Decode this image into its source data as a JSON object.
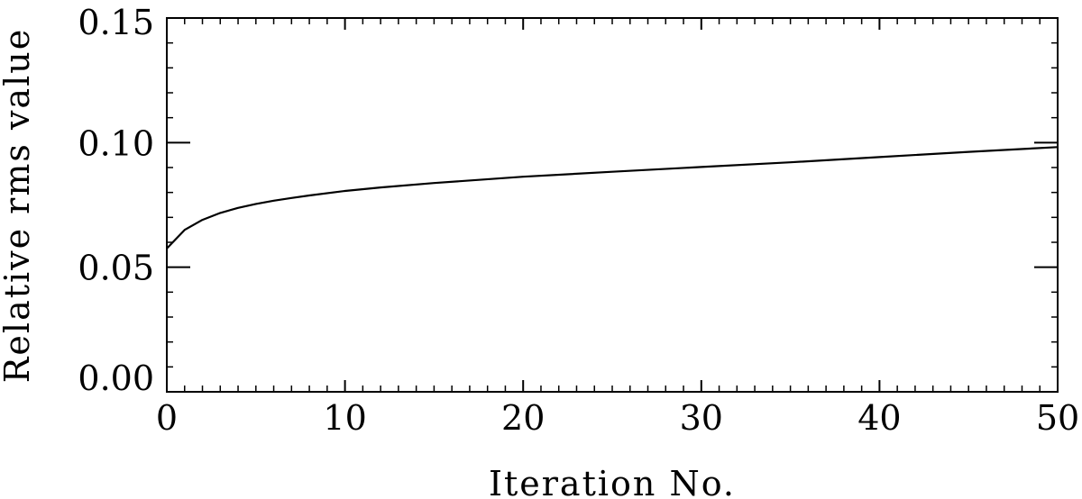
{
  "chart_data": {
    "type": "line",
    "title": "",
    "xlabel": "Iteration No.",
    "ylabel": "Relative rms value",
    "xlim": [
      0,
      50
    ],
    "ylim": [
      0.0,
      0.15
    ],
    "x_ticks": [
      0,
      10,
      20,
      30,
      40,
      50
    ],
    "x_tick_labels": [
      "0",
      "10",
      "20",
      "30",
      "40",
      "50"
    ],
    "x_minor_step": 1,
    "y_ticks": [
      0.0,
      0.05,
      0.1,
      0.15
    ],
    "y_tick_labels": [
      "0.00",
      "0.05",
      "0.10",
      "0.15"
    ],
    "y_minor_step": 0.01,
    "grid": false,
    "legend": "none",
    "series": [
      {
        "color": "#000000",
        "x": [
          0,
          1,
          2,
          3,
          4,
          5,
          6,
          7,
          8,
          10,
          12,
          15,
          20,
          25,
          30,
          35,
          40,
          45,
          50
        ],
        "y": [
          0.0575,
          0.065,
          0.069,
          0.0718,
          0.0738,
          0.0754,
          0.0767,
          0.0778,
          0.0788,
          0.0806,
          0.082,
          0.0838,
          0.0863,
          0.0883,
          0.0902,
          0.0921,
          0.0942,
          0.0963,
          0.0982
        ]
      }
    ]
  }
}
